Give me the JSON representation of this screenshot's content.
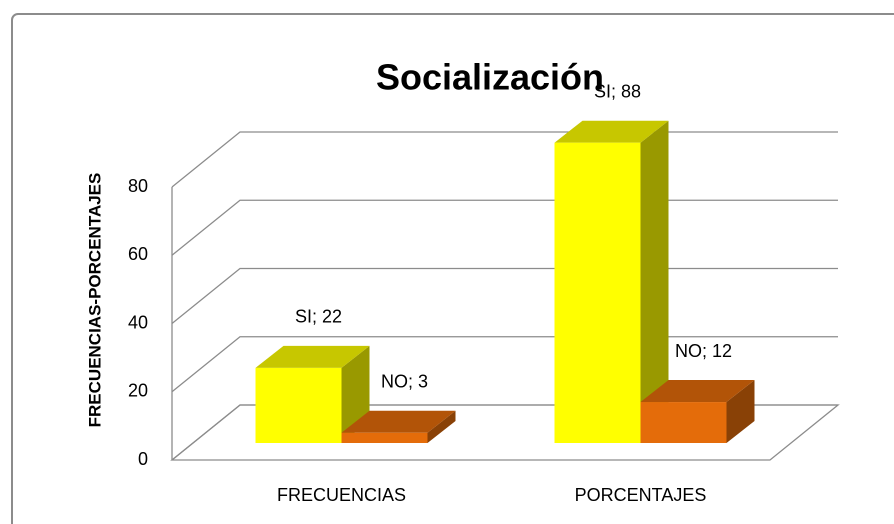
{
  "chart_data": {
    "type": "bar3d",
    "title": "Socialización",
    "y_label": "FRECUENCIAS-PORCENTAJES",
    "categories": [
      "FRECUENCIAS",
      "PORCENTAJES"
    ],
    "series": [
      {
        "name": "SI",
        "color": "#ffff00",
        "values": [
          22,
          88
        ],
        "value_labels": [
          "SI; 22",
          "SI; 88"
        ]
      },
      {
        "name": "NO",
        "color": "#e46c0a",
        "values": [
          3,
          12
        ],
        "value_labels": [
          "NO; 3",
          "NO; 12"
        ]
      }
    ],
    "ylim": [
      0,
      80
    ],
    "yticks": [
      0,
      20,
      40,
      60,
      80
    ],
    "grid": true
  }
}
